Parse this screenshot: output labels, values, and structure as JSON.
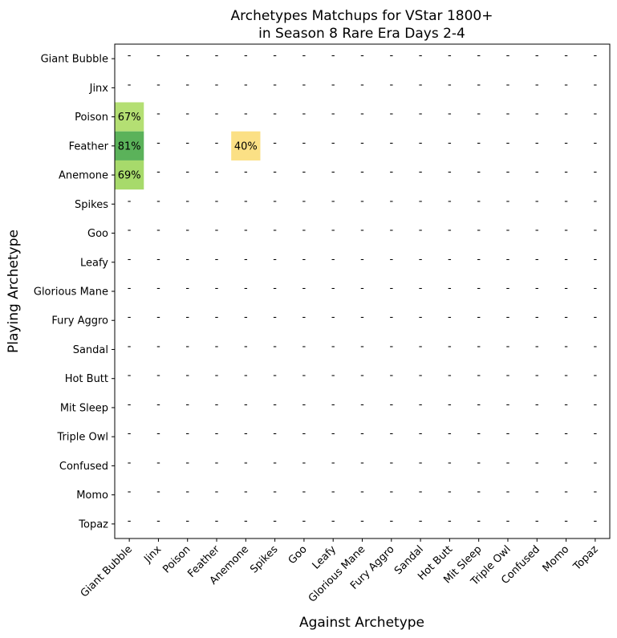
{
  "chart_data": {
    "type": "heatmap",
    "title_line1": "Archetypes Matchups for VStar 1800+",
    "title_line2": "in Season 8 Rare Era Days 2-4",
    "xlabel": "Against Archetype",
    "ylabel": "Playing Archetype",
    "archetypes": [
      "Giant Bubble",
      "Jinx",
      "Poison",
      "Feather",
      "Anemone",
      "Spikes",
      "Goo",
      "Leafy",
      "Glorious Mane",
      "Fury Aggro",
      "Sandal",
      "Hot Butt",
      "Mit Sleep",
      "Triple Owl",
      "Confused",
      "Momo",
      "Topaz"
    ],
    "empty_symbol": "-",
    "cells": [
      {
        "row": "Poison",
        "col": "Giant Bubble",
        "value": 67,
        "label": "67%",
        "color": "#b4df73"
      },
      {
        "row": "Feather",
        "col": "Giant Bubble",
        "value": 81,
        "label": "81%",
        "color": "#5bb25a"
      },
      {
        "row": "Feather",
        "col": "Anemone",
        "value": 40,
        "label": "40%",
        "color": "#fbe085"
      },
      {
        "row": "Anemone",
        "col": "Giant Bubble",
        "value": 69,
        "label": "69%",
        "color": "#a7da6b"
      }
    ]
  }
}
